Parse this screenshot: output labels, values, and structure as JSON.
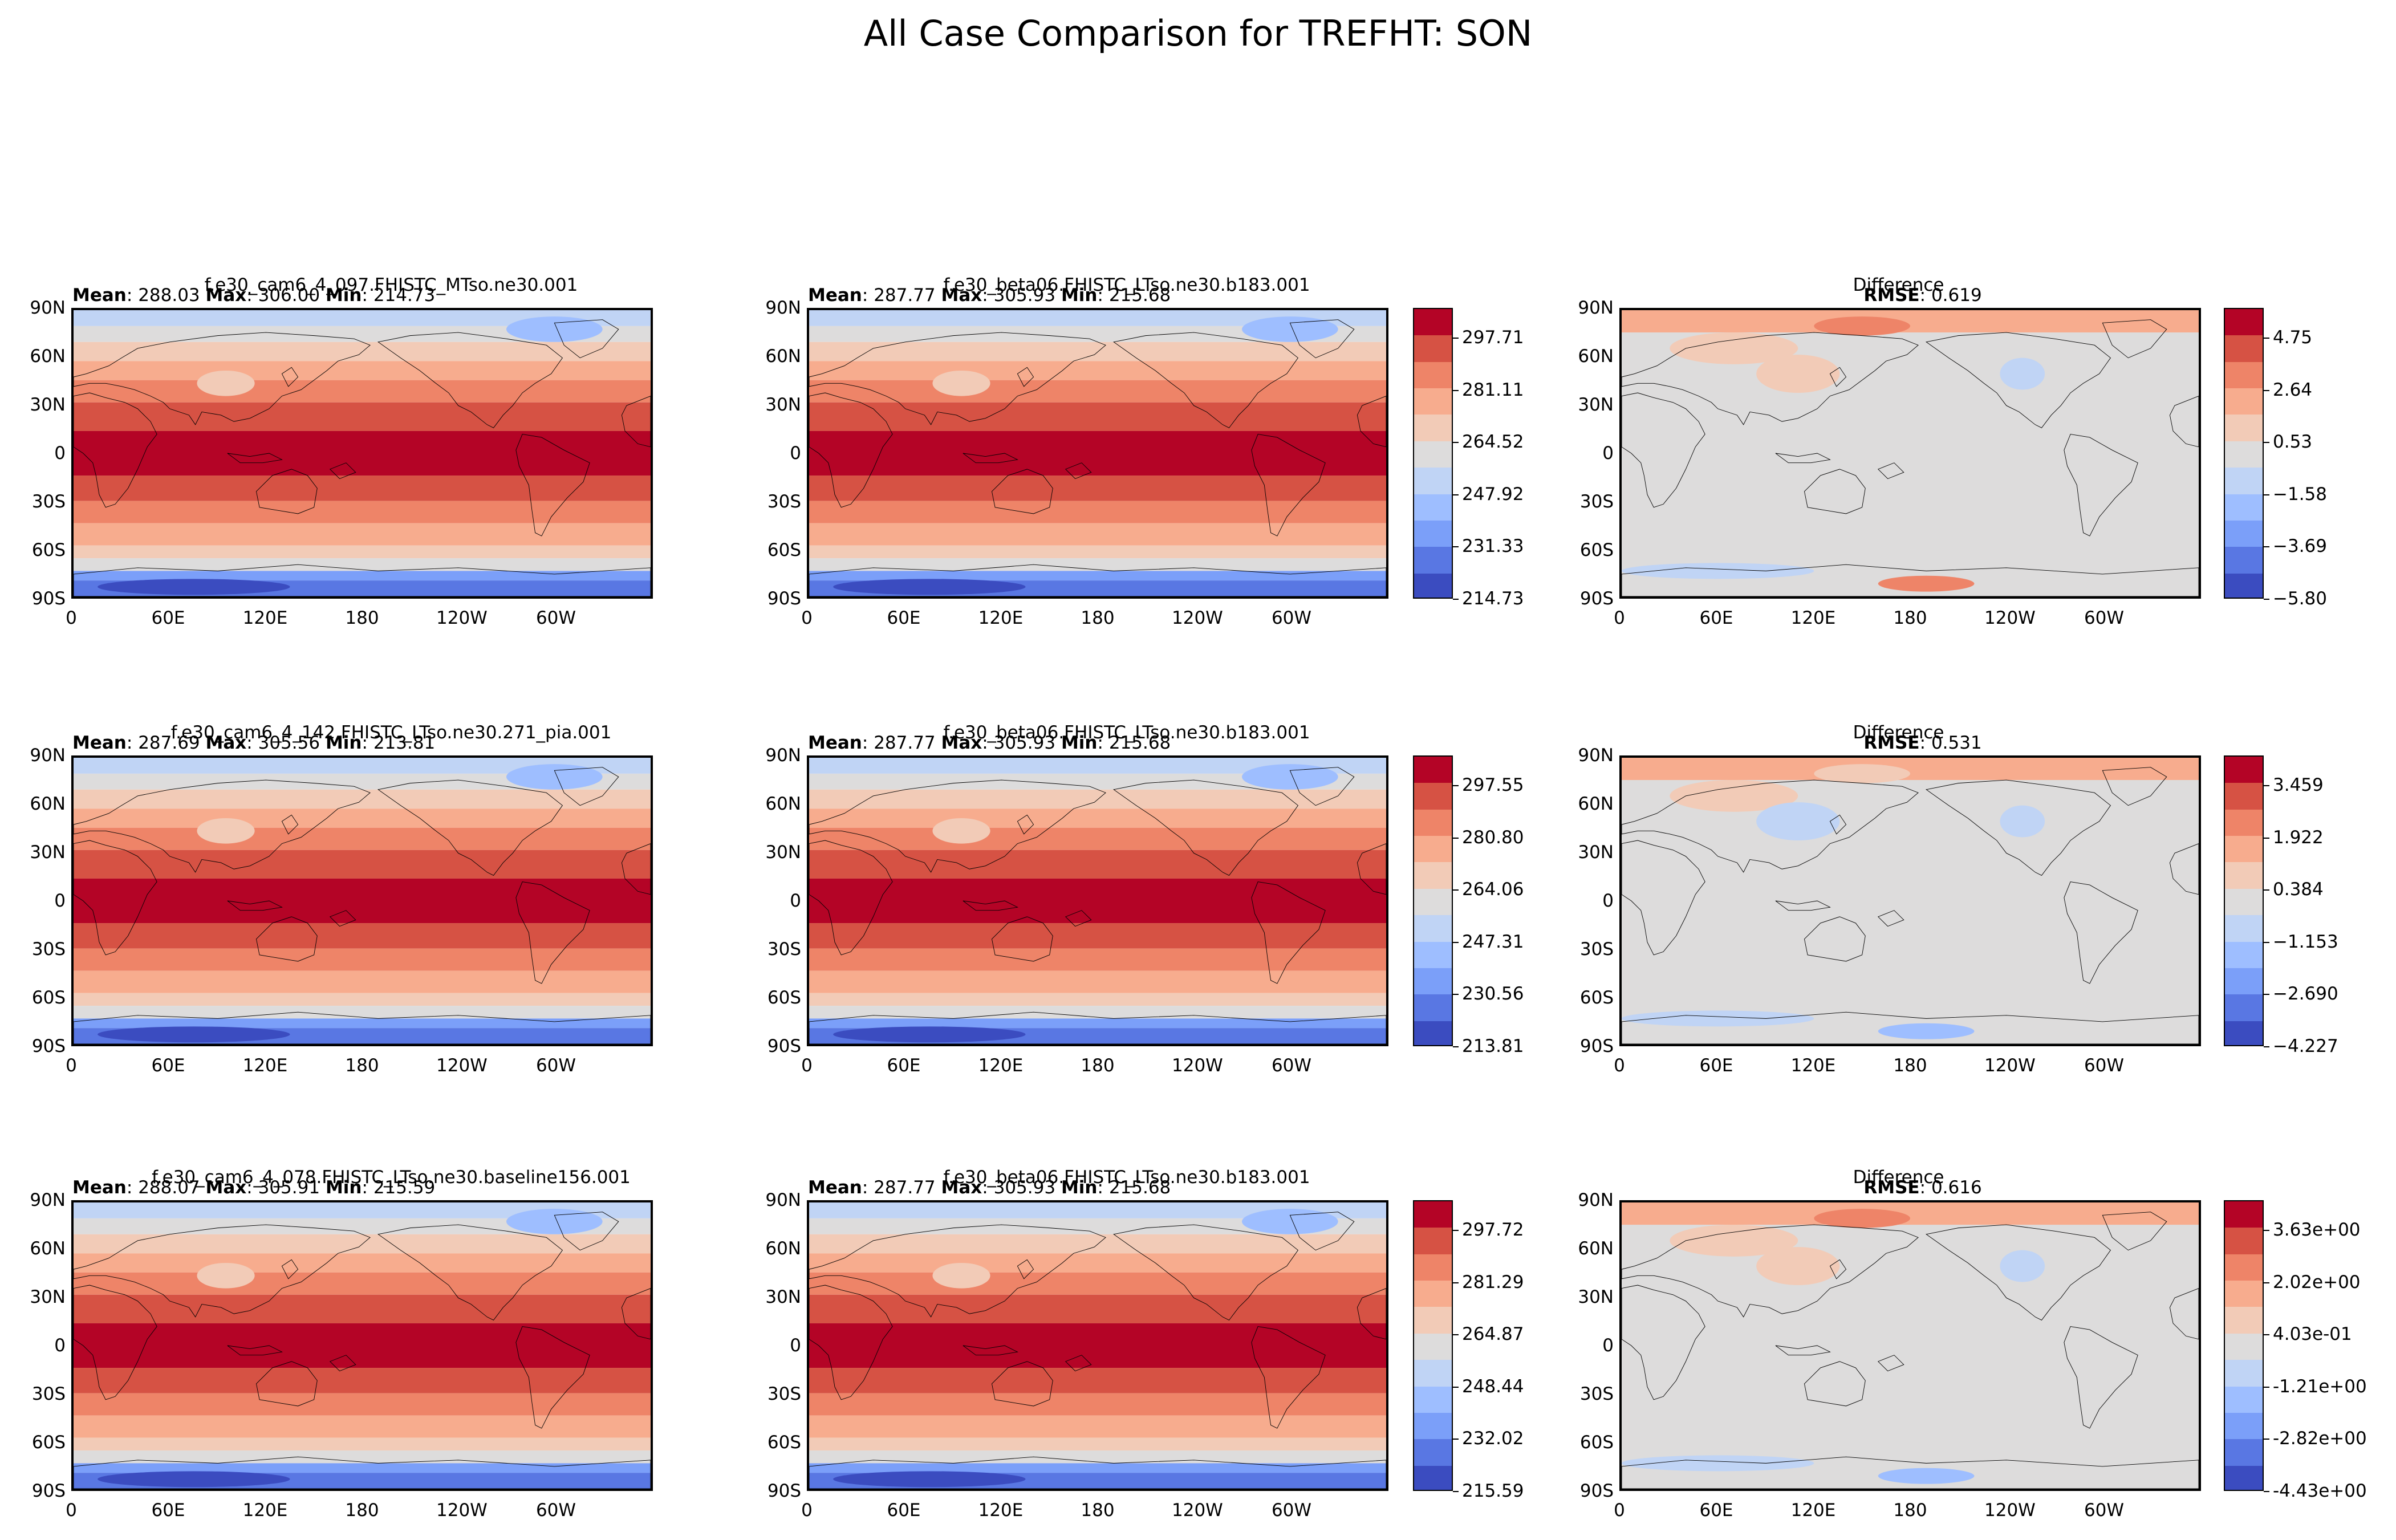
{
  "figure": {
    "suptitle": "All Case Comparison for TREFHT: SON"
  },
  "axes": {
    "lat_ticks": [
      "90N",
      "60N",
      "30N",
      "0",
      "30S",
      "60S",
      "90S"
    ],
    "lon_ticks": [
      "0",
      "60E",
      "120E",
      "180",
      "120W",
      "60W"
    ]
  },
  "colors": {
    "levels": [
      "#3b4cc0",
      "#5977e3",
      "#7b9ff9",
      "#9ebeff",
      "#c0d4f5",
      "#dddcdc",
      "#f2cbb7",
      "#f7ac8e",
      "#ee8468",
      "#d65244",
      "#b40426"
    ],
    "land": "#dddcdc"
  },
  "rows": [
    {
      "test": {
        "title": "f.e30_cam6_4_097.FHISTC_MTso.ne30.001",
        "mean_label": "Mean",
        "mean": "288.03",
        "max_label": "Max",
        "max": "306.00",
        "min_label": "Min",
        "min": "214.73"
      },
      "ref": {
        "title": "f.e30_beta06.FHISTC_LTso.ne30.b183.001",
        "mean_label": "Mean",
        "mean": "287.77",
        "max_label": "Max",
        "max": "305.93",
        "min_label": "Min",
        "min": "215.68"
      },
      "abs_colorbar": [
        "297.71",
        "281.11",
        "264.52",
        "247.92",
        "231.33",
        "214.73"
      ],
      "diff": {
        "title": "Difference",
        "rmse_label": "RMSE",
        "rmse": "0.619"
      },
      "diff_colorbar": [
        "4.75",
        "2.64",
        "0.53",
        "−1.58",
        "−3.69",
        "−5.80"
      ]
    },
    {
      "test": {
        "title": "f.e30_cam6_4_142.FHISTC_LTso.ne30.271_pia.001",
        "mean_label": "Mean",
        "mean": "287.69",
        "max_label": "Max",
        "max": "305.56",
        "min_label": "Min",
        "min": "213.81"
      },
      "ref": {
        "title": "f.e30_beta06.FHISTC_LTso.ne30.b183.001",
        "mean_label": "Mean",
        "mean": "287.77",
        "max_label": "Max",
        "max": "305.93",
        "min_label": "Min",
        "min": "215.68"
      },
      "abs_colorbar": [
        "297.55",
        "280.80",
        "264.06",
        "247.31",
        "230.56",
        "213.81"
      ],
      "diff": {
        "title": "Difference",
        "rmse_label": "RMSE",
        "rmse": "0.531"
      },
      "diff_colorbar": [
        "3.459",
        "1.922",
        "0.384",
        "−1.153",
        "−2.690",
        "−4.227"
      ]
    },
    {
      "test": {
        "title": "f.e30_cam6_4_078.FHISTC_LTso.ne30.baseline156.001",
        "mean_label": "Mean",
        "mean": "288.07",
        "max_label": "Max",
        "max": "305.91",
        "min_label": "Min",
        "min": "215.59"
      },
      "ref": {
        "title": "f.e30_beta06.FHISTC_LTso.ne30.b183.001",
        "mean_label": "Mean",
        "mean": "287.77",
        "max_label": "Max",
        "max": "305.93",
        "min_label": "Min",
        "min": "215.68"
      },
      "abs_colorbar": [
        "297.72",
        "281.29",
        "264.87",
        "248.44",
        "232.02",
        "215.59"
      ],
      "diff": {
        "title": "Difference",
        "rmse_label": "RMSE",
        "rmse": "0.616"
      },
      "diff_colorbar": [
        "3.63e+00",
        "2.02e+00",
        "4.03e-01",
        "-1.21e+00",
        "-2.82e+00",
        "-4.43e+00"
      ]
    }
  ],
  "chart_data": {
    "type": "heatmap",
    "title": "All Case Comparison for TREFHT: SON",
    "variable": "TREFHT",
    "season": "SON",
    "projection": "PlateCarree",
    "x_axis": {
      "ticks": [
        "0",
        "60E",
        "120E",
        "180",
        "120W",
        "60W"
      ],
      "range": [
        0,
        360
      ]
    },
    "y_axis": {
      "ticks": [
        "90N",
        "60N",
        "30N",
        "0",
        "30S",
        "60S",
        "90S"
      ],
      "range": [
        -90,
        90
      ]
    },
    "panels": [
      {
        "row": 1,
        "case": "f.e30_cam6_4_097.FHISTC_MTso.ne30.001",
        "mean": 288.03,
        "max": 306.0,
        "min": 214.73,
        "colorbar": [
          297.71,
          281.11,
          264.52,
          247.92,
          231.33,
          214.73
        ]
      },
      {
        "row": 1,
        "case": "f.e30_beta06.FHISTC_LTso.ne30.b183.001",
        "mean": 287.77,
        "max": 305.93,
        "min": 215.68
      },
      {
        "row": 1,
        "case": "Difference",
        "rmse": 0.619,
        "colorbar": [
          4.75,
          2.64,
          0.53,
          -1.58,
          -3.69,
          -5.8
        ]
      },
      {
        "row": 2,
        "case": "f.e30_cam6_4_142.FHISTC_LTso.ne30.271_pia.001",
        "mean": 287.69,
        "max": 305.56,
        "min": 213.81,
        "colorbar": [
          297.55,
          280.8,
          264.06,
          247.31,
          230.56,
          213.81
        ]
      },
      {
        "row": 2,
        "case": "f.e30_beta06.FHISTC_LTso.ne30.b183.001",
        "mean": 287.77,
        "max": 305.93,
        "min": 215.68
      },
      {
        "row": 2,
        "case": "Difference",
        "rmse": 0.531,
        "colorbar": [
          3.459,
          1.922,
          0.384,
          -1.153,
          -2.69,
          -4.227
        ]
      },
      {
        "row": 3,
        "case": "f.e30_cam6_4_078.FHISTC_LTso.ne30.baseline156.001",
        "mean": 288.07,
        "max": 305.91,
        "min": 215.59,
        "colorbar": [
          297.72,
          281.29,
          264.87,
          248.44,
          232.02,
          215.59
        ]
      },
      {
        "row": 3,
        "case": "f.e30_beta06.FHISTC_LTso.ne30.b183.001",
        "mean": 287.77,
        "max": 305.93,
        "min": 215.68
      },
      {
        "row": 3,
        "case": "Difference",
        "rmse": 0.616,
        "colorbar": [
          3.63,
          2.02,
          0.403,
          -1.21,
          -2.82,
          -4.43
        ]
      }
    ]
  }
}
